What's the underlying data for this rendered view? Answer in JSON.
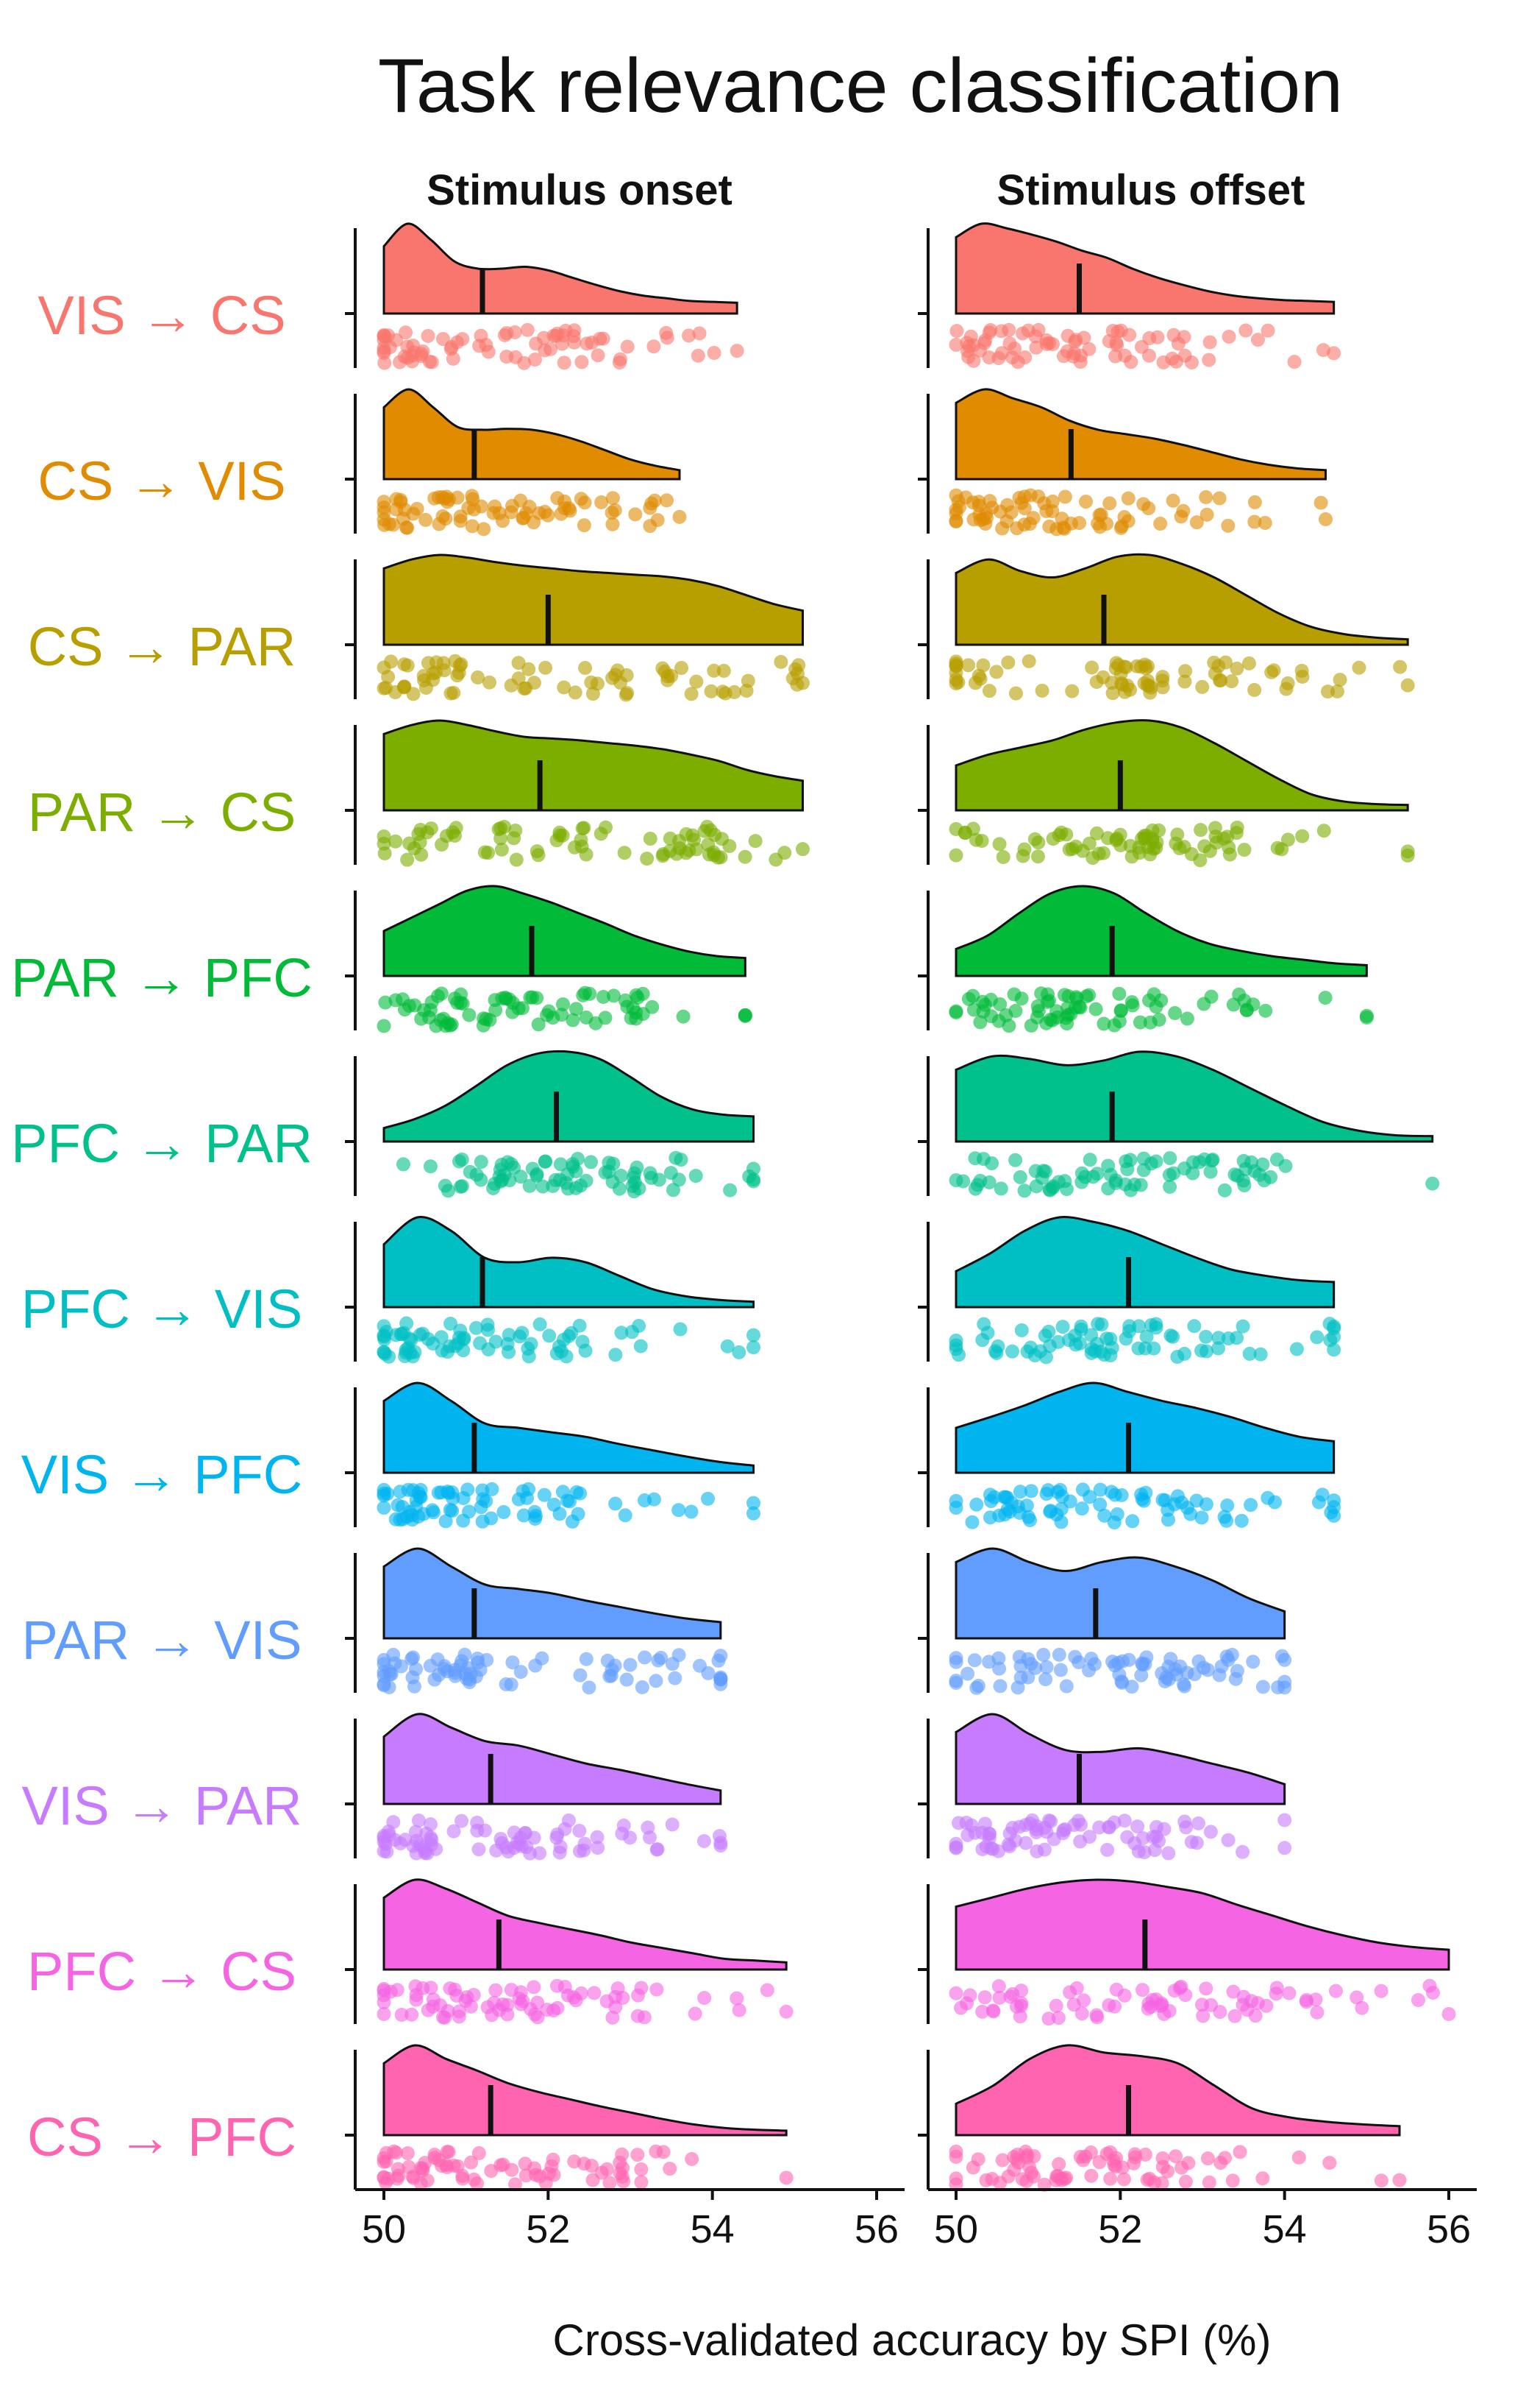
{
  "chart_data": {
    "type": "raincloud",
    "title": "Task relevance classification",
    "xlabel": "Cross-validated accuracy by SPI (%)",
    "xlim": [
      50,
      56
    ],
    "xticks": [
      50,
      52,
      54,
      56
    ],
    "facets": [
      "Stimulus onset",
      "Stimulus offset"
    ],
    "series": [
      {
        "name": "VIS → CS",
        "color": "#F8766D",
        "onset": {
          "median": 51.2,
          "max": 54.3,
          "peak": 50.3,
          "density": [
            0.75,
            1,
            0.82,
            0.58,
            0.5,
            0.5,
            0.52,
            0.48,
            0.4,
            0.32,
            0.25,
            0.2,
            0.17,
            0.14,
            0.13,
            0.12
          ]
        },
        "offset": {
          "median": 51.5,
          "max": 54.6,
          "peak": 50.4,
          "density": [
            0.85,
            1,
            0.95,
            0.88,
            0.8,
            0.7,
            0.62,
            0.5,
            0.4,
            0.32,
            0.25,
            0.2,
            0.17,
            0.15,
            0.14,
            0.13
          ]
        }
      },
      {
        "name": "CS → VIS",
        "color": "#E08B00",
        "onset": {
          "median": 51.1,
          "max": 53.6,
          "peak": 50.2,
          "density": [
            0.8,
            1,
            0.8,
            0.58,
            0.55,
            0.56,
            0.55,
            0.5,
            0.42,
            0.32,
            0.22,
            0.15,
            0.1
          ]
        },
        "offset": {
          "median": 51.4,
          "max": 54.5,
          "peak": 50.4,
          "density": [
            0.85,
            1,
            0.9,
            0.8,
            0.65,
            0.55,
            0.5,
            0.45,
            0.38,
            0.3,
            0.22,
            0.16,
            0.12,
            0.1
          ]
        }
      },
      {
        "name": "CS → PAR",
        "color": "#B79F00",
        "onset": {
          "median": 52.0,
          "max": 55.1,
          "peak": 50.6,
          "density": [
            0.85,
            0.95,
            1,
            0.97,
            0.92,
            0.88,
            0.85,
            0.82,
            0.8,
            0.78,
            0.76,
            0.72,
            0.65,
            0.55,
            0.45,
            0.38
          ]
        },
        "offset": {
          "median": 51.8,
          "max": 55.5,
          "peak": 52.5,
          "density": [
            0.8,
            0.95,
            0.82,
            0.75,
            0.85,
            0.98,
            1,
            0.9,
            0.75,
            0.55,
            0.35,
            0.2,
            0.12,
            0.08,
            0.06
          ]
        }
      },
      {
        "name": "PAR → CS",
        "color": "#7CAE00",
        "onset": {
          "median": 51.9,
          "max": 55.1,
          "peak": 50.6,
          "density": [
            0.85,
            0.95,
            1,
            0.95,
            0.88,
            0.82,
            0.8,
            0.78,
            0.75,
            0.72,
            0.68,
            0.62,
            0.55,
            0.45,
            0.38,
            0.33
          ]
        },
        "offset": {
          "median": 52.0,
          "max": 55.5,
          "peak": 52.5,
          "density": [
            0.5,
            0.62,
            0.7,
            0.78,
            0.9,
            0.98,
            1,
            0.92,
            0.75,
            0.55,
            0.35,
            0.18,
            0.1,
            0.07,
            0.06
          ]
        }
      },
      {
        "name": "PAR → PFC",
        "color": "#00BA38",
        "onset": {
          "median": 51.8,
          "max": 54.4,
          "peak": 51.6,
          "density": [
            0.5,
            0.65,
            0.8,
            0.95,
            1,
            0.92,
            0.82,
            0.7,
            0.58,
            0.45,
            0.35,
            0.27,
            0.22,
            0.2
          ]
        },
        "offset": {
          "median": 51.9,
          "max": 55.0,
          "peak": 51.8,
          "density": [
            0.3,
            0.45,
            0.7,
            0.92,
            1,
            0.92,
            0.7,
            0.5,
            0.36,
            0.28,
            0.22,
            0.18,
            0.14,
            0.12
          ]
        }
      },
      {
        "name": "PFC → PAR",
        "color": "#00C08B",
        "onset": {
          "median": 52.1,
          "max": 54.5,
          "peak": 52.5,
          "density": [
            0.15,
            0.25,
            0.4,
            0.62,
            0.85,
            0.98,
            1,
            0.92,
            0.72,
            0.5,
            0.36,
            0.3,
            0.28
          ]
        },
        "offset": {
          "median": 51.9,
          "max": 55.8,
          "peak": 52.5,
          "density": [
            0.8,
            0.95,
            0.92,
            0.85,
            0.9,
            1,
            0.95,
            0.8,
            0.6,
            0.4,
            0.22,
            0.12,
            0.07,
            0.06
          ]
        }
      },
      {
        "name": "PFC → VIS",
        "color": "#00BFC4",
        "onset": {
          "median": 51.2,
          "max": 54.5,
          "peak": 50.6,
          "density": [
            0.7,
            1,
            0.85,
            0.55,
            0.5,
            0.55,
            0.5,
            0.35,
            0.2,
            0.12,
            0.08,
            0.06
          ]
        },
        "offset": {
          "median": 52.1,
          "max": 54.6,
          "peak": 52.2,
          "density": [
            0.4,
            0.6,
            0.85,
            1,
            0.95,
            0.85,
            0.7,
            0.55,
            0.42,
            0.35,
            0.3,
            0.28
          ]
        }
      },
      {
        "name": "VIS → PFC",
        "color": "#00B4F0",
        "onset": {
          "median": 51.1,
          "max": 54.5,
          "peak": 50.5,
          "density": [
            0.8,
            1,
            0.8,
            0.55,
            0.5,
            0.45,
            0.4,
            0.32,
            0.25,
            0.18,
            0.12,
            0.08
          ]
        },
        "offset": {
          "median": 52.1,
          "max": 54.6,
          "peak": 52.0,
          "density": [
            0.5,
            0.62,
            0.75,
            0.9,
            1,
            0.9,
            0.8,
            0.72,
            0.62,
            0.5,
            0.4,
            0.35
          ]
        }
      },
      {
        "name": "PAR → VIS",
        "color": "#619CFF",
        "onset": {
          "median": 51.1,
          "max": 54.1,
          "peak": 50.3,
          "density": [
            0.8,
            1,
            0.8,
            0.6,
            0.55,
            0.5,
            0.42,
            0.35,
            0.28,
            0.22,
            0.18
          ]
        },
        "offset": {
          "median": 51.7,
          "max": 54.0,
          "peak": 50.6,
          "density": [
            0.85,
            1,
            0.85,
            0.75,
            0.85,
            0.9,
            0.8,
            0.65,
            0.45,
            0.3
          ]
        }
      },
      {
        "name": "VIS → PAR",
        "color": "#C77CFF",
        "onset": {
          "median": 51.3,
          "max": 54.1,
          "peak": 50.3,
          "density": [
            0.75,
            1,
            0.85,
            0.7,
            0.65,
            0.55,
            0.45,
            0.38,
            0.3,
            0.22,
            0.15
          ]
        },
        "offset": {
          "median": 51.5,
          "max": 54.0,
          "peak": 50.5,
          "density": [
            0.8,
            1,
            0.78,
            0.6,
            0.58,
            0.62,
            0.55,
            0.45,
            0.35,
            0.22
          ]
        }
      },
      {
        "name": "PFC → CS",
        "color": "#F564E3",
        "onset": {
          "median": 51.4,
          "max": 54.9,
          "peak": 50.4,
          "density": [
            0.8,
            1,
            0.9,
            0.75,
            0.6,
            0.52,
            0.45,
            0.38,
            0.3,
            0.24,
            0.18,
            0.12,
            0.1,
            0.08
          ]
        },
        "offset": {
          "median": 52.3,
          "max": 56.0,
          "peak": 52.0,
          "density": [
            0.7,
            0.8,
            0.9,
            0.97,
            1,
            0.98,
            0.92,
            0.85,
            0.72,
            0.6,
            0.48,
            0.38,
            0.3,
            0.25,
            0.22
          ]
        }
      },
      {
        "name": "CS → PFC",
        "color": "#FF64B0",
        "onset": {
          "median": 51.3,
          "max": 54.9,
          "peak": 50.4,
          "density": [
            0.8,
            1,
            0.85,
            0.72,
            0.58,
            0.48,
            0.4,
            0.32,
            0.25,
            0.18,
            0.12,
            0.08,
            0.06,
            0.05
          ]
        },
        "offset": {
          "median": 52.1,
          "max": 55.4,
          "peak": 51.8,
          "density": [
            0.35,
            0.55,
            0.85,
            1,
            0.92,
            0.88,
            0.8,
            0.55,
            0.3,
            0.2,
            0.15,
            0.12,
            0.1
          ]
        }
      }
    ]
  }
}
